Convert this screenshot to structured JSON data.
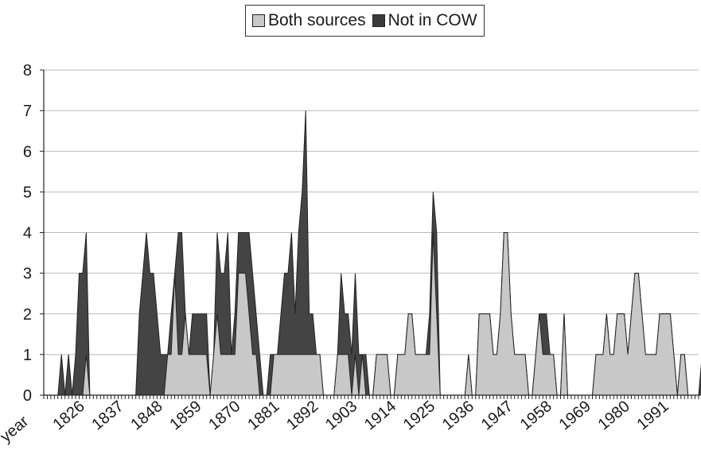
{
  "chart_data": {
    "type": "area",
    "title": "",
    "xlabel": "year",
    "ylabel": "",
    "stacked": true,
    "ylim": [
      0,
      8
    ],
    "yticks": [
      0,
      1,
      2,
      3,
      4,
      5,
      6,
      7,
      8
    ],
    "grid": true,
    "legend": "top-center",
    "x_start": 1816,
    "x_end": 2001,
    "x_tick_labels": [
      1826,
      1837,
      1848,
      1859,
      1870,
      1881,
      1892,
      1903,
      1914,
      1925,
      1936,
      1947,
      1958,
      1969,
      1980,
      1991
    ],
    "colors": {
      "Both sources": "#c8c8c8",
      "Not in COW": "#444444",
      "outline": "#222222"
    },
    "series": [
      {
        "name": "Both sources",
        "values": [
          0,
          0,
          0,
          0,
          0,
          0,
          0,
          0,
          0,
          0,
          0,
          0,
          1,
          0,
          0,
          0,
          0,
          0,
          0,
          0,
          0,
          0,
          0,
          0,
          0,
          0,
          0,
          0,
          0,
          0,
          0,
          0,
          0,
          0,
          0,
          1,
          1,
          3,
          1,
          1,
          2,
          1,
          1,
          1,
          1,
          1,
          1,
          0,
          1,
          2,
          1,
          1,
          1,
          1,
          1,
          3,
          3,
          3,
          2,
          1,
          1,
          0,
          0,
          0,
          0,
          1,
          1,
          1,
          1,
          1,
          1,
          1,
          1,
          1,
          1,
          1,
          1,
          1,
          1,
          0,
          0,
          0,
          0,
          1,
          1,
          1,
          1,
          0,
          1,
          0,
          1,
          0,
          0,
          0,
          1,
          1,
          1,
          1,
          0,
          0,
          1,
          1,
          1,
          2,
          2,
          1,
          1,
          1,
          1,
          1,
          4,
          2,
          0,
          0,
          0,
          0,
          0,
          0,
          0,
          0,
          1,
          0,
          0,
          2,
          2,
          2,
          2,
          1,
          1,
          2,
          4,
          4,
          2,
          1,
          1,
          1,
          1,
          0,
          0,
          1,
          2,
          1,
          1,
          1,
          1,
          0,
          0,
          2,
          0,
          0,
          0,
          0,
          0,
          0,
          0,
          0,
          1,
          1,
          1,
          2,
          1,
          1,
          2,
          2,
          2,
          1,
          2,
          3,
          3,
          2,
          1,
          1,
          1,
          1,
          2,
          2,
          2,
          2,
          1,
          0,
          1,
          1,
          0,
          0,
          0,
          0,
          0,
          0,
          0,
          0,
          0,
          0,
          0,
          0,
          0,
          0,
          0,
          0,
          0,
          0,
          0,
          0,
          0,
          0,
          0,
          0
        ]
      },
      {
        "name": "Not in COW",
        "values": [
          0,
          0,
          0,
          0,
          0,
          1,
          0,
          1,
          0,
          1,
          3,
          3,
          3,
          0,
          0,
          0,
          0,
          0,
          0,
          0,
          0,
          0,
          0,
          0,
          0,
          0,
          0,
          2,
          3,
          4,
          3,
          3,
          2,
          1,
          1,
          0,
          1,
          0,
          3,
          3,
          0,
          0,
          1,
          1,
          1,
          1,
          1,
          0,
          0,
          2,
          2,
          2,
          3,
          0,
          1,
          1,
          1,
          1,
          2,
          2,
          1,
          1,
          0,
          0,
          1,
          0,
          0,
          1,
          2,
          2,
          3,
          1,
          3,
          4,
          6,
          1,
          1,
          0,
          0,
          0,
          0,
          0,
          0,
          0,
          2,
          1,
          1,
          1,
          2,
          1,
          0,
          1,
          0,
          0,
          0,
          0,
          0,
          0,
          0,
          0,
          0,
          0,
          0,
          0,
          0,
          0,
          0,
          0,
          0,
          1,
          1,
          2,
          0,
          0,
          0,
          0,
          0,
          0,
          0,
          0,
          0,
          0,
          0,
          0,
          0,
          0,
          0,
          0,
          0,
          0,
          0,
          0,
          0,
          0,
          0,
          0,
          0,
          0,
          0,
          0,
          0,
          1,
          1,
          0,
          0,
          0,
          0,
          0,
          0,
          0,
          0,
          0,
          0,
          0,
          0,
          0,
          0,
          0,
          0,
          0,
          0,
          0,
          0,
          0,
          0,
          0,
          0,
          0,
          0,
          0,
          0,
          0,
          0,
          0,
          0,
          0,
          0,
          0,
          0,
          0,
          0,
          0,
          0,
          0,
          0,
          0,
          1,
          1,
          2,
          0,
          0,
          0,
          0,
          0,
          0,
          0,
          0,
          0,
          0,
          0,
          0,
          0,
          0,
          0,
          0,
          0,
          0,
          0,
          0,
          0,
          0,
          0,
          0,
          0,
          0,
          0
        ]
      }
    ]
  }
}
